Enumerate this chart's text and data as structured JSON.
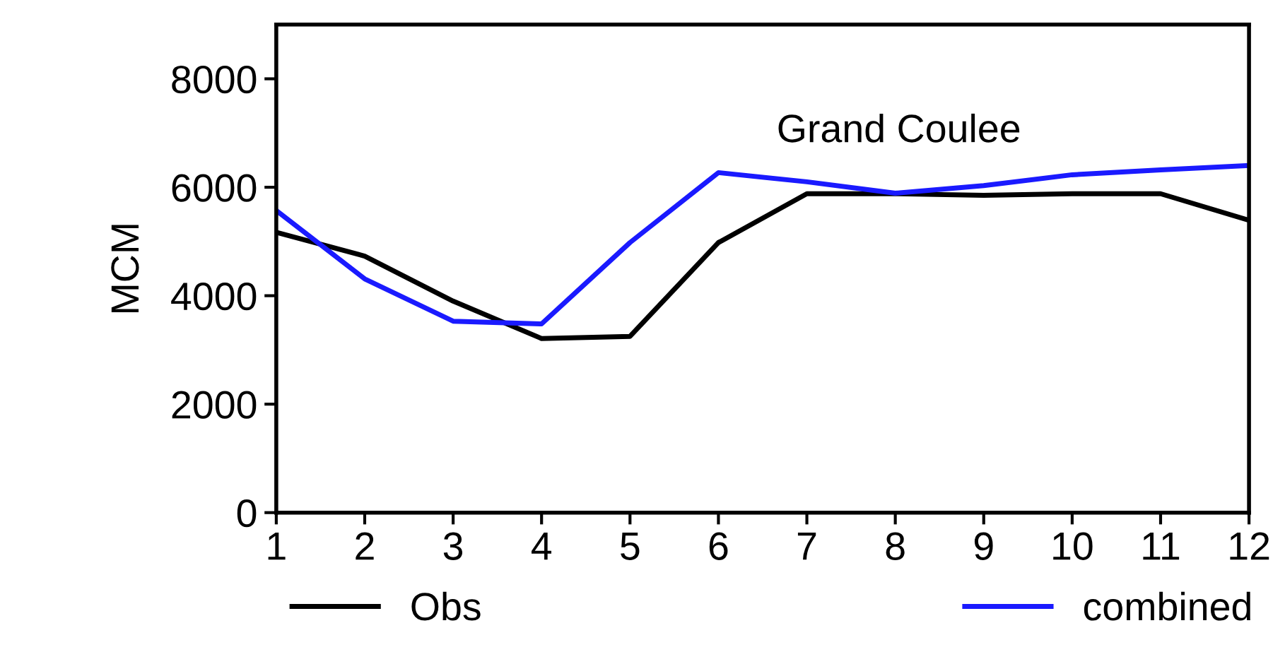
{
  "chart_data": {
    "type": "line",
    "title": "Grand Coulee",
    "ylabel": "MCM",
    "x": [
      1,
      2,
      3,
      4,
      5,
      6,
      7,
      8,
      9,
      10,
      11,
      12
    ],
    "series": [
      {
        "name": "Obs",
        "color": "#000000",
        "values": [
          5170,
          4730,
          3900,
          3210,
          3250,
          4980,
          5880,
          5880,
          5850,
          5880,
          5880,
          5390
        ]
      },
      {
        "name": "combined",
        "color": "#1a1aff",
        "values": [
          5570,
          4310,
          3530,
          3480,
          4980,
          6270,
          6100,
          5890,
          6030,
          6230,
          6320,
          6400
        ]
      }
    ],
    "xlim": [
      1,
      12
    ],
    "xticks": [
      1,
      2,
      3,
      4,
      5,
      6,
      7,
      8,
      9,
      10,
      11,
      12
    ],
    "ylim": [
      0,
      9000
    ],
    "yticks": [
      0,
      2000,
      4000,
      6000,
      8000
    ],
    "grid": false,
    "legend": "bottom",
    "marker": "none",
    "line_style": "solid"
  }
}
